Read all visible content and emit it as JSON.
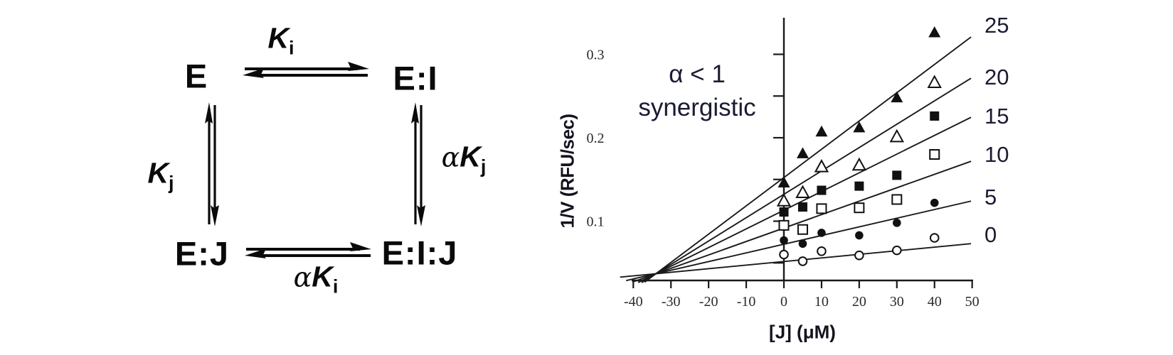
{
  "scheme": {
    "species": {
      "e": "E",
      "ei": "E:I",
      "ej": "E:J",
      "eij": "E:I:J"
    },
    "constants": {
      "ki": {
        "alpha": "",
        "k": "K",
        "sub": "i"
      },
      "kj": {
        "alpha": "",
        "k": "K",
        "sub": "j"
      },
      "aki": {
        "alpha": "α",
        "k": "K",
        "sub": "i"
      },
      "akj": {
        "alpha": "α",
        "k": "K",
        "sub": "j"
      }
    }
  },
  "chart_data": {
    "type": "scatter",
    "title": "",
    "xlabel": "[J] (μM)",
    "ylabel": "1/V (RFU/sec)",
    "annotation_line1": "α < 1",
    "annotation_line2": "synergistic",
    "xlim": [
      -40,
      50
    ],
    "ylim": [
      0.03,
      0.33
    ],
    "x_ticks": [
      -40,
      -30,
      -20,
      -10,
      0,
      10,
      20,
      30,
      40,
      50
    ],
    "y_ticks": [
      0.05,
      0.1,
      0.15,
      0.2,
      0.25,
      0.3
    ],
    "y_tick_labels_shown": [
      "0.1",
      "0.2",
      "0.3"
    ],
    "grid": false,
    "legend_position": "right-of-lines",
    "x_values": [
      0,
      5,
      10,
      20,
      30,
      40
    ],
    "series": [
      {
        "name": "25",
        "marker": "triangle-filled",
        "values": [
          0.146,
          0.181,
          0.207,
          0.212,
          0.248,
          0.326
        ],
        "fit_slope": 0.00339
      },
      {
        "name": "20",
        "marker": "triangle-open",
        "values": [
          0.124,
          0.134,
          0.165,
          0.167,
          0.201,
          0.266
        ],
        "fit_slope": 0.0028
      },
      {
        "name": "15",
        "marker": "square-filled",
        "values": [
          0.111,
          0.117,
          0.137,
          0.142,
          0.155,
          0.226
        ],
        "fit_slope": 0.00224
      },
      {
        "name": "10",
        "marker": "square-open",
        "values": [
          0.095,
          0.09,
          0.115,
          0.116,
          0.126,
          0.18
        ],
        "fit_slope": 0.00161
      },
      {
        "name": "5",
        "marker": "circle-filled",
        "values": [
          0.077,
          0.073,
          0.086,
          0.083,
          0.098,
          0.122
        ],
        "fit_slope": 0.00104
      },
      {
        "name": "0",
        "marker": "circle-open",
        "values": [
          0.06,
          0.052,
          0.064,
          0.059,
          0.065,
          0.08
        ],
        "fit_slope": 0.00043
      }
    ],
    "convergence_point": {
      "x": -34,
      "v": 0.037
    }
  }
}
